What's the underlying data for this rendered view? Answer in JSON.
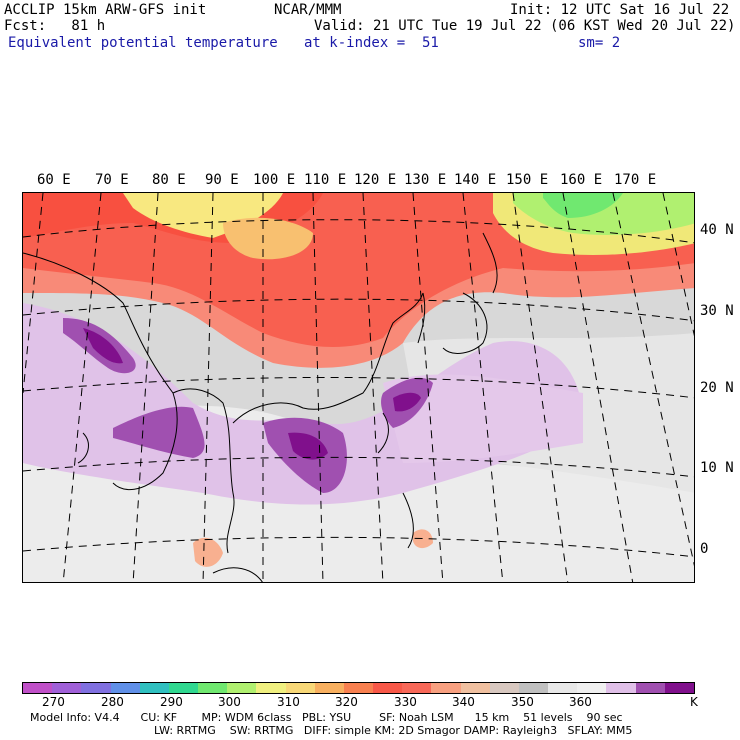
{
  "header": {
    "line1_left": "ACCLIP 15km ARW-GFS init",
    "line1_center": "NCAR/MMM",
    "line1_right": "Init: 12 UTC Sat 16 Jul 22",
    "line2_left": "Fcst:   81 h",
    "line2_right": "Valid: 21 UTC Tue 19 Jul 22 (06 KST Wed 20 Jul 22)",
    "line3_left": "Equivalent potential temperature",
    "line3_center": "at k-index =  51",
    "line3_right": "sm= 2"
  },
  "map": {
    "lon_labels": [
      "60 E",
      "70 E",
      "80 E",
      "90 E",
      "100 E",
      "110 E",
      "120 E",
      "130 E",
      "140 E",
      "150 E",
      "160 E",
      "170 E"
    ],
    "lat_labels": [
      "40 N",
      "30 N",
      "20 N",
      "10 N",
      "0"
    ]
  },
  "colorbar": {
    "colors": [
      "#c050c8",
      "#a060d8",
      "#8070e0",
      "#6090e8",
      "#30c0c0",
      "#30d890",
      "#70e870",
      "#b0f070",
      "#f0f080",
      "#f8d878",
      "#f8b060",
      "#f88050",
      "#f85848",
      "#f86858",
      "#f8a080",
      "#f0c0a0",
      "#d8c8c0",
      "#c0c0c0",
      "#e8e8e8",
      "#f0f0f0",
      "#e0c0e8",
      "#a050b0",
      "#80108c"
    ],
    "labels": [
      "270",
      "280",
      "290",
      "300",
      "310",
      "320",
      "330",
      "340",
      "350",
      "360",
      "K"
    ]
  },
  "footer": {
    "line1": "Model Info: V4.4      CU: KF       MP: WDM 6class   PBL: YSU        SF: Noah LSM      15 km    51 levels    90 sec",
    "line2": "LW: RRTMG    SW: RRTMG   DIFF: simple KM: 2D Smagor DAMP: Rayleigh3   SFLAY: MM5"
  }
}
